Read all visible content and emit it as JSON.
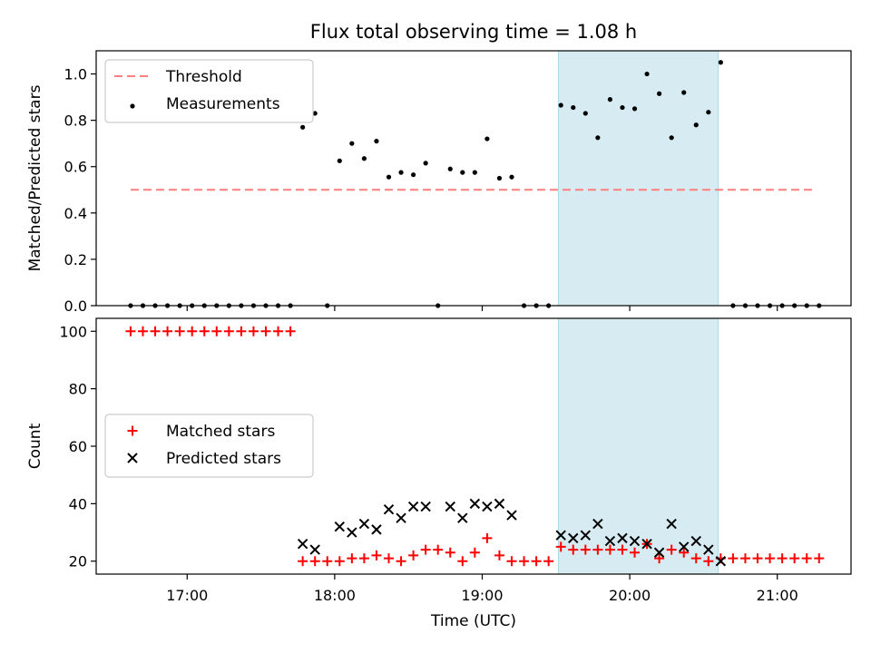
{
  "figure": {
    "title": "Flux total observing time = 1.08 h",
    "xlabel": "Time (UTC)"
  },
  "colors": {
    "threshold": "#ff7f7f",
    "measurement": "#000000",
    "matched": "#ff0000",
    "predicted": "#000000",
    "highlight": "#add8e6"
  },
  "chart_data": [
    {
      "type": "scatter",
      "panel": "top",
      "ylabel": "Matched/Predicted stars",
      "xlim": [
        "16:23",
        "21:30"
      ],
      "ylim": [
        0,
        1.1
      ],
      "yticks": [
        0.0,
        0.2,
        0.4,
        0.6,
        0.8,
        1.0
      ],
      "ytick_labels": [
        "0.0",
        "0.2",
        "0.4",
        "0.6",
        "0.8",
        "1.0"
      ],
      "xticks": [
        "17:00",
        "18:00",
        "19:00",
        "20:00",
        "21:00"
      ],
      "grid": false,
      "legend": {
        "position": "top-left",
        "entries": [
          "Threshold",
          "Measurements"
        ]
      },
      "highlight_span": [
        "19:31",
        "20:36"
      ],
      "threshold": {
        "name": "Threshold",
        "x": [
          "16:37",
          "21:16"
        ],
        "y": 0.5
      },
      "series": [
        {
          "name": "Measurements",
          "x": [
            "16:37",
            "16:42",
            "16:47",
            "16:52",
            "16:57",
            "17:02",
            "17:07",
            "17:12",
            "17:17",
            "17:22",
            "17:27",
            "17:32",
            "17:37",
            "17:42",
            "17:47",
            "17:52",
            "17:57",
            "18:02",
            "18:07",
            "18:12",
            "18:17",
            "18:22",
            "18:27",
            "18:32",
            "18:37",
            "18:42",
            "18:47",
            "18:52",
            "18:57",
            "19:02",
            "19:07",
            "19:12",
            "19:17",
            "19:22",
            "19:27",
            "19:32",
            "19:37",
            "19:42",
            "19:47",
            "19:52",
            "19:57",
            "20:02",
            "20:07",
            "20:12",
            "20:17",
            "20:22",
            "20:27",
            "20:32",
            "20:37",
            "20:42",
            "20:47",
            "20:52",
            "20:57",
            "21:02",
            "21:07",
            "21:12",
            "21:17"
          ],
          "y": [
            0,
            0,
            0,
            0,
            0,
            0,
            0,
            0,
            0,
            0,
            0,
            0,
            0,
            0,
            0.77,
            0.83,
            0,
            0.625,
            0.7,
            0.635,
            0.71,
            0.555,
            0.575,
            0.565,
            0.615,
            0,
            0.59,
            0.575,
            0.575,
            0.72,
            0.55,
            0.555,
            0,
            0,
            0,
            0.865,
            0.855,
            0.83,
            0.725,
            0.89,
            0.855,
            0.85,
            1.0,
            0.915,
            0.725,
            0.92,
            0.78,
            0.835,
            1.05,
            0,
            0,
            0,
            0,
            0,
            0,
            0,
            0
          ]
        }
      ]
    },
    {
      "type": "scatter",
      "panel": "bottom",
      "ylabel": "Count",
      "xlabel": "Time (UTC)",
      "xlim": [
        "16:23",
        "21:30"
      ],
      "ylim": [
        15.5,
        104.5
      ],
      "yticks": [
        20,
        40,
        60,
        80,
        100
      ],
      "ytick_labels": [
        "20",
        "40",
        "60",
        "80",
        "100"
      ],
      "xticks": [
        "17:00",
        "18:00",
        "19:00",
        "20:00",
        "21:00"
      ],
      "xtick_labels": [
        "17:00",
        "18:00",
        "19:00",
        "20:00",
        "21:00"
      ],
      "grid": false,
      "legend": {
        "position": "center-left",
        "entries": [
          "Matched stars",
          "Predicted stars"
        ]
      },
      "highlight_span": [
        "19:31",
        "20:36"
      ],
      "series": [
        {
          "name": "Matched stars",
          "x": [
            "16:37",
            "16:42",
            "16:47",
            "16:52",
            "16:57",
            "17:02",
            "17:07",
            "17:12",
            "17:17",
            "17:22",
            "17:27",
            "17:32",
            "17:37",
            "17:42",
            "17:47",
            "17:52",
            "17:57",
            "18:02",
            "18:07",
            "18:12",
            "18:17",
            "18:22",
            "18:27",
            "18:32",
            "18:37",
            "18:42",
            "18:47",
            "18:52",
            "18:57",
            "19:02",
            "19:07",
            "19:12",
            "19:17",
            "19:22",
            "19:27",
            "19:32",
            "19:37",
            "19:42",
            "19:47",
            "19:52",
            "19:57",
            "20:02",
            "20:07",
            "20:12",
            "20:17",
            "20:22",
            "20:27",
            "20:32",
            "20:37",
            "20:42",
            "20:47",
            "20:52",
            "20:57",
            "21:02",
            "21:07",
            "21:12",
            "21:17"
          ],
          "y": [
            100,
            100,
            100,
            100,
            100,
            100,
            100,
            100,
            100,
            100,
            100,
            100,
            100,
            100,
            20,
            20,
            20,
            20,
            21,
            21,
            22,
            21,
            20,
            22,
            24,
            24,
            23,
            20,
            23,
            28,
            22,
            20,
            20,
            20,
            20,
            25,
            24,
            24,
            24,
            24,
            24,
            23,
            26,
            21,
            24,
            23,
            21,
            20,
            21,
            21,
            21,
            21,
            21,
            21,
            21,
            21,
            21
          ]
        },
        {
          "name": "Predicted stars",
          "x": [
            "17:47",
            "17:52",
            "18:02",
            "18:07",
            "18:12",
            "18:17",
            "18:22",
            "18:27",
            "18:32",
            "18:37",
            "18:47",
            "18:52",
            "18:57",
            "19:02",
            "19:07",
            "19:12",
            "19:32",
            "19:37",
            "19:42",
            "19:47",
            "19:52",
            "19:57",
            "20:02",
            "20:07",
            "20:12",
            "20:17",
            "20:22",
            "20:27",
            "20:32",
            "20:37"
          ],
          "y": [
            26,
            24,
            32,
            30,
            33,
            31,
            38,
            35,
            39,
            39,
            39,
            35,
            40,
            39,
            40,
            36,
            29,
            28,
            29,
            33,
            27,
            28,
            27,
            26,
            23,
            33,
            25,
            27,
            24,
            20
          ]
        }
      ]
    }
  ]
}
